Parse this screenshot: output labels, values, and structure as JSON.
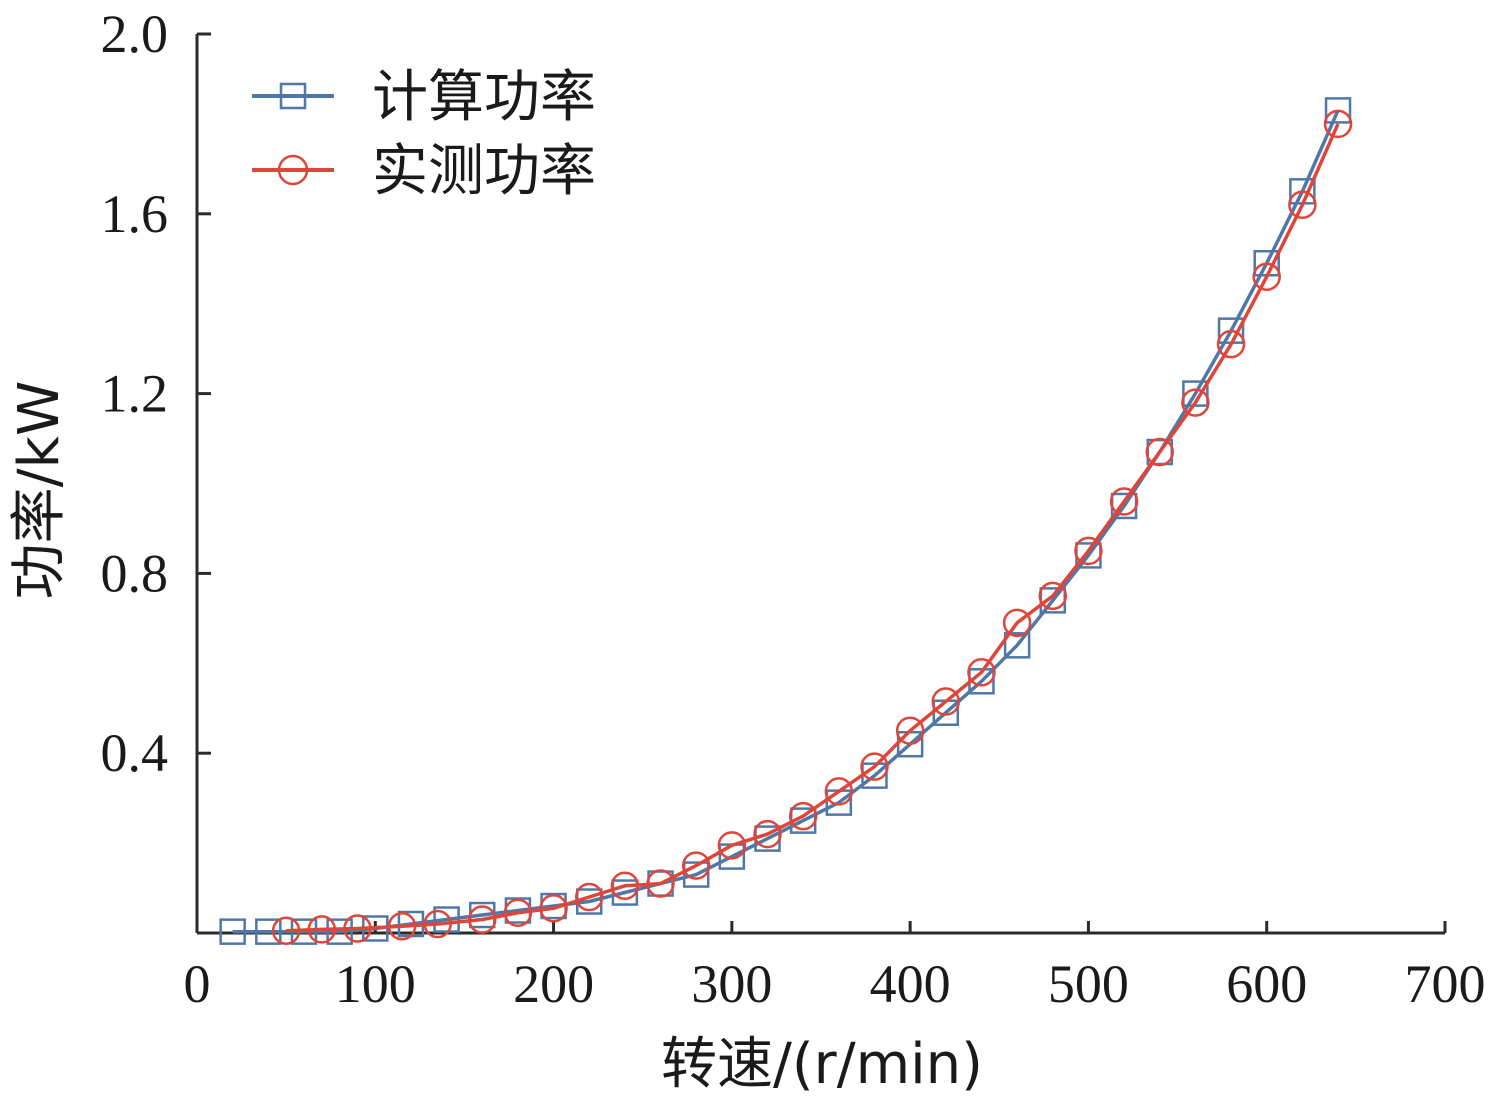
{
  "chart_data": {
    "type": "line",
    "xlabel": "转速/(r/min)",
    "ylabel": "功率/kW",
    "xlim": [
      0,
      700
    ],
    "ylim": [
      0,
      2.0
    ],
    "x_ticks": [
      "0",
      "100",
      "200",
      "300",
      "400",
      "500",
      "600",
      "700"
    ],
    "y_ticks": [
      "0.4",
      "0.8",
      "1.2",
      "1.6",
      "2.0"
    ],
    "grid": false,
    "legend_position": "top-left",
    "series": [
      {
        "name": "计算功率",
        "color": "#4f78a8",
        "marker": "square",
        "x": [
          20,
          40,
          60,
          80,
          100,
          120,
          140,
          160,
          180,
          200,
          220,
          240,
          260,
          280,
          300,
          320,
          340,
          360,
          380,
          400,
          420,
          440,
          460,
          480,
          500,
          520,
          540,
          560,
          580,
          600,
          620,
          640
        ],
        "y": [
          0.003,
          0.003,
          0.003,
          0.003,
          0.01,
          0.02,
          0.03,
          0.04,
          0.05,
          0.06,
          0.07,
          0.09,
          0.11,
          0.13,
          0.17,
          0.21,
          0.25,
          0.29,
          0.35,
          0.42,
          0.49,
          0.56,
          0.64,
          0.74,
          0.84,
          0.95,
          1.07,
          1.2,
          1.34,
          1.49,
          1.65,
          1.83
        ]
      },
      {
        "name": "实测功率",
        "color": "#e0453a",
        "marker": "circle",
        "x": [
          50,
          70,
          90,
          115,
          135,
          160,
          180,
          200,
          220,
          240,
          260,
          280,
          300,
          320,
          340,
          360,
          380,
          400,
          420,
          440,
          460,
          480,
          500,
          520,
          540,
          560,
          580,
          600,
          620,
          640
        ],
        "y": [
          0.005,
          0.008,
          0.01,
          0.015,
          0.02,
          0.03,
          0.045,
          0.055,
          0.08,
          0.105,
          0.11,
          0.15,
          0.195,
          0.22,
          0.26,
          0.315,
          0.37,
          0.45,
          0.515,
          0.58,
          0.69,
          0.75,
          0.85,
          0.96,
          1.07,
          1.18,
          1.31,
          1.46,
          1.62,
          1.8
        ]
      }
    ]
  }
}
